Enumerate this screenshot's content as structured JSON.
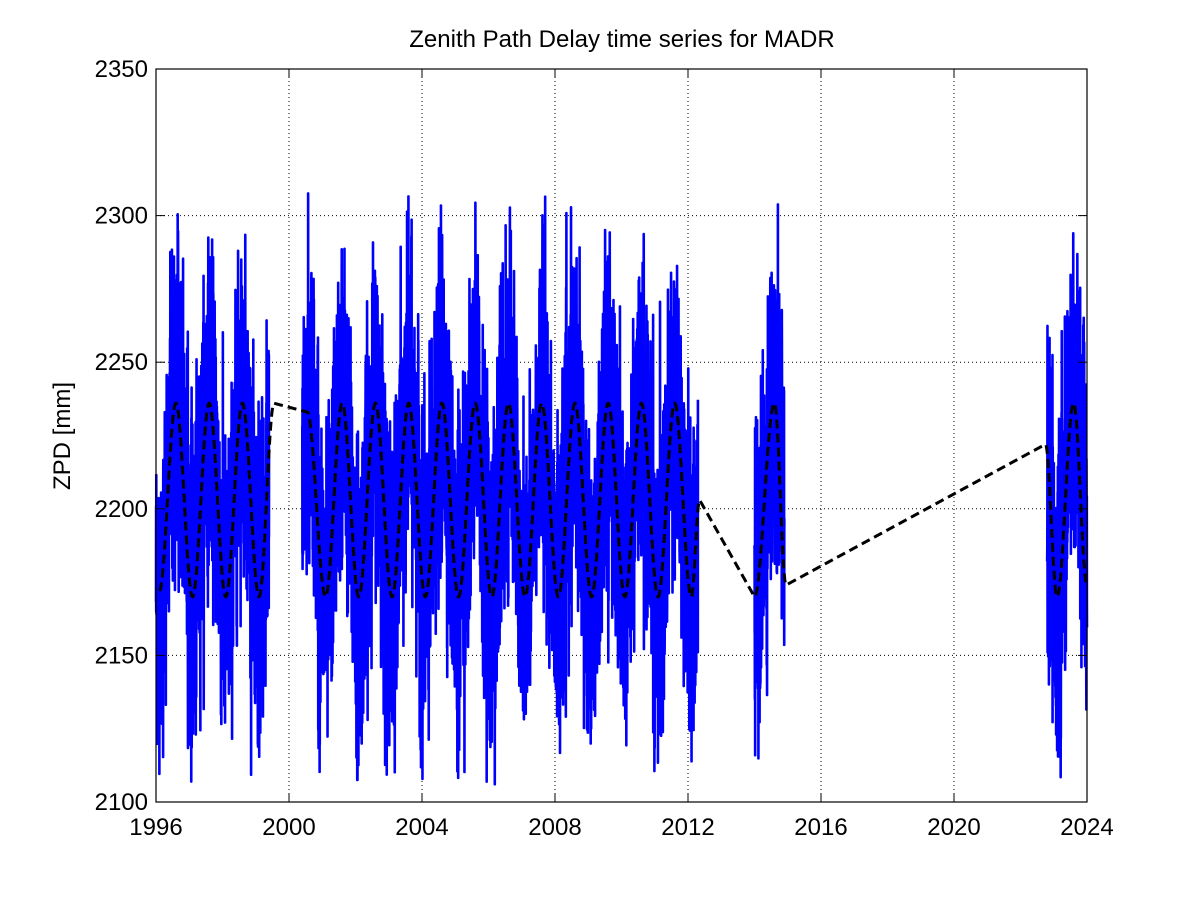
{
  "chart_data": {
    "type": "line",
    "title": "Zenith Path Delay time series for MADR",
    "xlabel": "",
    "ylabel": "ZPD [mm]",
    "xlim": [
      1996,
      2024
    ],
    "ylim": [
      2100,
      2350
    ],
    "x_ticks": [
      1996,
      2000,
      2004,
      2008,
      2012,
      2016,
      2020,
      2024
    ],
    "x_tick_labels": [
      "1996",
      "2000",
      "2004",
      "2008",
      "2012",
      "2016",
      "2020",
      "2024"
    ],
    "y_ticks": [
      2100,
      2150,
      2200,
      2250,
      2300,
      2350
    ],
    "y_tick_labels": [
      "2100",
      "2150",
      "2200",
      "2250",
      "2300",
      "2350"
    ],
    "grid": true,
    "series": [
      {
        "style": "solid",
        "color": "#0000ff",
        "segments": [
          {
            "x_start": 1996.0,
            "x_end": 1999.4
          },
          {
            "x_start": 2000.4,
            "x_end": 2012.3
          },
          {
            "x_start": 2014.0,
            "x_end": 2014.9
          },
          {
            "x_start": 2022.8,
            "x_end": 2024.0
          }
        ],
        "visible_range": [
          2106,
          2309
        ]
      },
      {
        "style": "dashed",
        "color": "#000000",
        "description_points": [
          [
            1996.1,
            2172
          ],
          [
            1996.6,
            2236
          ],
          [
            1997.1,
            2170
          ],
          [
            1997.6,
            2236
          ],
          [
            1998.1,
            2170
          ],
          [
            1998.6,
            2236
          ],
          [
            1999.1,
            2170
          ],
          [
            1999.55,
            2236
          ],
          [
            2000.55,
            2233
          ],
          [
            2001.1,
            2170
          ],
          [
            2001.6,
            2236
          ],
          [
            2002.1,
            2170
          ],
          [
            2002.6,
            2236
          ],
          [
            2003.1,
            2170
          ],
          [
            2003.6,
            2236
          ],
          [
            2004.1,
            2170
          ],
          [
            2004.6,
            2236
          ],
          [
            2005.1,
            2170
          ],
          [
            2005.6,
            2236
          ],
          [
            2006.1,
            2170
          ],
          [
            2006.6,
            2236
          ],
          [
            2007.1,
            2170
          ],
          [
            2007.6,
            2236
          ],
          [
            2008.1,
            2170
          ],
          [
            2008.6,
            2236
          ],
          [
            2009.1,
            2170
          ],
          [
            2009.6,
            2236
          ],
          [
            2010.1,
            2170
          ],
          [
            2010.6,
            2236
          ],
          [
            2011.1,
            2170
          ],
          [
            2011.6,
            2236
          ],
          [
            2012.1,
            2170
          ],
          [
            2012.35,
            2203
          ],
          [
            2014.0,
            2170
          ],
          [
            2014.6,
            2236
          ],
          [
            2014.95,
            2174
          ],
          [
            2022.75,
            2222
          ],
          [
            2023.1,
            2170
          ],
          [
            2023.6,
            2236
          ],
          [
            2024.0,
            2174
          ]
        ]
      }
    ]
  }
}
